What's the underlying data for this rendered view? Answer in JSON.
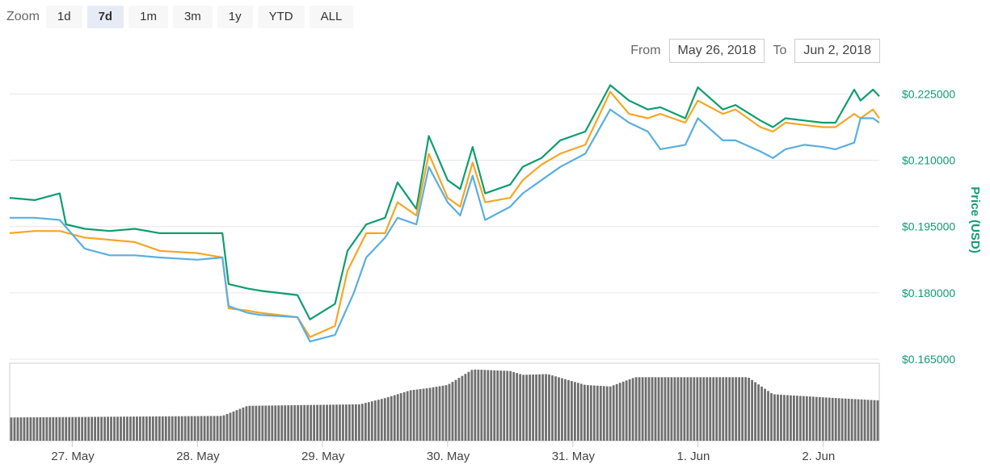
{
  "zoom": {
    "label": "Zoom",
    "buttons": [
      "1d",
      "7d",
      "1m",
      "3m",
      "1y",
      "YTD",
      "ALL"
    ],
    "active": "7d"
  },
  "range": {
    "from_label": "From",
    "from_value": "May 26, 2018",
    "to_label": "To",
    "to_value": "Jun 2, 2018"
  },
  "colors": {
    "green": "#0f9d6c",
    "orange": "#f5a623",
    "blue": "#5aaee0",
    "volume": "#6f6f6f",
    "axis_text": "#0f9d6c"
  },
  "chart_data": {
    "type": "line",
    "y_axis_title": "Price (USD)",
    "y_ticks": [
      "$0.225000",
      "$0.210000",
      "$0.195000",
      "$0.180000",
      "$0.165000"
    ],
    "y_tick_values": [
      0.225,
      0.21,
      0.195,
      0.18,
      0.165
    ],
    "ylim": [
      0.165,
      0.228
    ],
    "x_ticks": [
      "27. May",
      "28. May",
      "29. May",
      "30. May",
      "31. May",
      "1. Jun",
      "2. Jun"
    ],
    "x_tick_values": [
      0.5,
      1.5,
      2.5,
      3.5,
      4.5,
      5.5,
      6.5
    ],
    "xlim": [
      0,
      6.95
    ],
    "grid": true,
    "series": [
      {
        "color": "green",
        "x": [
          0,
          0.2,
          0.4,
          0.45,
          0.6,
          0.8,
          1.0,
          1.2,
          1.5,
          1.7,
          1.75,
          1.9,
          2.0,
          2.3,
          2.4,
          2.6,
          2.7,
          2.85,
          3.0,
          3.1,
          3.25,
          3.35,
          3.5,
          3.6,
          3.7,
          3.8,
          4.0,
          4.1,
          4.25,
          4.4,
          4.6,
          4.8,
          4.95,
          5.1,
          5.2,
          5.4,
          5.5,
          5.7,
          5.8,
          6.0,
          6.1,
          6.2,
          6.35,
          6.5,
          6.6,
          6.75,
          6.8,
          6.9,
          6.95
        ],
        "values": [
          0.2015,
          0.201,
          0.2025,
          0.1955,
          0.1945,
          0.194,
          0.1945,
          0.1935,
          0.1935,
          0.1935,
          0.182,
          0.181,
          0.1805,
          0.1795,
          0.174,
          0.1775,
          0.1895,
          0.1955,
          0.197,
          0.205,
          0.199,
          0.2155,
          0.2055,
          0.2035,
          0.213,
          0.2025,
          0.2045,
          0.2085,
          0.2105,
          0.2145,
          0.2165,
          0.227,
          0.2235,
          0.2215,
          0.222,
          0.2195,
          0.2265,
          0.2215,
          0.2225,
          0.219,
          0.2175,
          0.2195,
          0.219,
          0.2185,
          0.2185,
          0.226,
          0.2235,
          0.226,
          0.2245
        ]
      },
      {
        "color": "orange",
        "x": [
          0,
          0.2,
          0.4,
          0.6,
          0.8,
          1.0,
          1.2,
          1.5,
          1.7,
          1.75,
          1.9,
          2.0,
          2.3,
          2.4,
          2.6,
          2.7,
          2.85,
          3.0,
          3.1,
          3.25,
          3.35,
          3.5,
          3.6,
          3.7,
          3.8,
          4.0,
          4.1,
          4.25,
          4.4,
          4.6,
          4.8,
          4.95,
          5.1,
          5.2,
          5.4,
          5.5,
          5.7,
          5.8,
          6.0,
          6.1,
          6.2,
          6.35,
          6.5,
          6.6,
          6.75,
          6.8,
          6.9,
          6.95
        ],
        "values": [
          0.1935,
          0.194,
          0.194,
          0.1925,
          0.192,
          0.1915,
          0.1895,
          0.189,
          0.188,
          0.1765,
          0.176,
          0.1755,
          0.1745,
          0.17,
          0.1725,
          0.185,
          0.1935,
          0.1935,
          0.2005,
          0.1975,
          0.2115,
          0.2015,
          0.1995,
          0.2095,
          0.2005,
          0.2015,
          0.2055,
          0.209,
          0.2115,
          0.2135,
          0.2255,
          0.2205,
          0.2195,
          0.2205,
          0.2185,
          0.2235,
          0.2205,
          0.2215,
          0.2175,
          0.2165,
          0.2185,
          0.218,
          0.2175,
          0.2175,
          0.2205,
          0.2195,
          0.2215,
          0.2195
        ]
      },
      {
        "color": "blue",
        "x": [
          0,
          0.2,
          0.4,
          0.6,
          0.8,
          1.0,
          1.2,
          1.5,
          1.7,
          1.75,
          1.9,
          2.0,
          2.3,
          2.4,
          2.6,
          2.75,
          2.85,
          3.0,
          3.1,
          3.25,
          3.35,
          3.5,
          3.6,
          3.7,
          3.8,
          4.0,
          4.1,
          4.25,
          4.4,
          4.6,
          4.8,
          4.95,
          5.1,
          5.2,
          5.4,
          5.5,
          5.7,
          5.8,
          6.0,
          6.1,
          6.2,
          6.35,
          6.5,
          6.6,
          6.75,
          6.8,
          6.9,
          6.95
        ],
        "values": [
          0.197,
          0.197,
          0.1965,
          0.19,
          0.1885,
          0.1885,
          0.188,
          0.1875,
          0.188,
          0.177,
          0.1755,
          0.175,
          0.1745,
          0.169,
          0.1705,
          0.18,
          0.188,
          0.1925,
          0.197,
          0.1955,
          0.2085,
          0.2005,
          0.1975,
          0.2065,
          0.1965,
          0.1995,
          0.2025,
          0.2055,
          0.2085,
          0.2115,
          0.2215,
          0.2185,
          0.2165,
          0.2125,
          0.2135,
          0.2195,
          0.2145,
          0.2145,
          0.212,
          0.2105,
          0.2125,
          0.2135,
          0.213,
          0.2125,
          0.214,
          0.2195,
          0.2195,
          0.2185
        ]
      }
    ],
    "volume": {
      "x": [
        0,
        1.7,
        1.9,
        2.8,
        3.0,
        3.2,
        3.35,
        3.5,
        3.7,
        4.0,
        4.1,
        4.3,
        4.6,
        4.8,
        5.0,
        5.5,
        5.9,
        6.1,
        6.5,
        6.95
      ],
      "values": [
        0.3,
        0.32,
        0.45,
        0.47,
        0.55,
        0.65,
        0.68,
        0.72,
        0.92,
        0.9,
        0.85,
        0.86,
        0.72,
        0.7,
        0.82,
        0.82,
        0.82,
        0.6,
        0.56,
        0.52
      ]
    }
  }
}
